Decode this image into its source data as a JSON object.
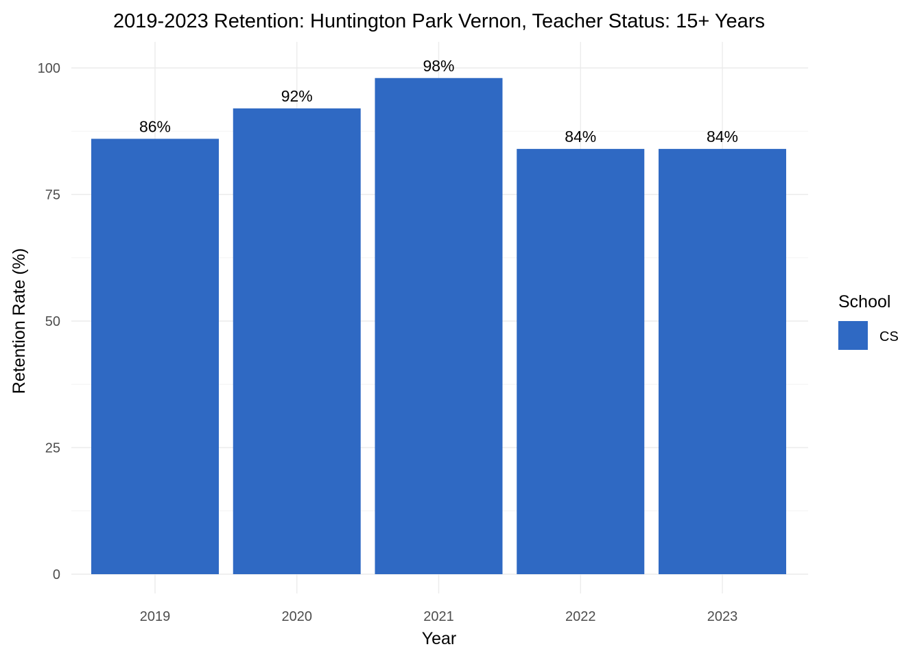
{
  "chart_data": {
    "type": "bar",
    "title": "2019-2023 Retention: Huntington Park Vernon, Teacher Status: 15+ Years",
    "xlabel": "Year",
    "ylabel": "Retention Rate (%)",
    "categories": [
      "2019",
      "2020",
      "2021",
      "2022",
      "2023"
    ],
    "series": [
      {
        "name": "CS",
        "color": "#2f69c3",
        "values": [
          86,
          92,
          98,
          84,
          84
        ],
        "labels": [
          "86%",
          "92%",
          "98%",
          "84%",
          "84%"
        ]
      }
    ],
    "ylim": [
      0,
      100
    ],
    "yticks": [
      0,
      25,
      50,
      75,
      100
    ],
    "yticklabels": [
      "0",
      "25",
      "50",
      "75",
      "100"
    ],
    "grid": true,
    "legend": {
      "title": "School",
      "placement": "right",
      "entries": [
        "CS"
      ]
    }
  }
}
